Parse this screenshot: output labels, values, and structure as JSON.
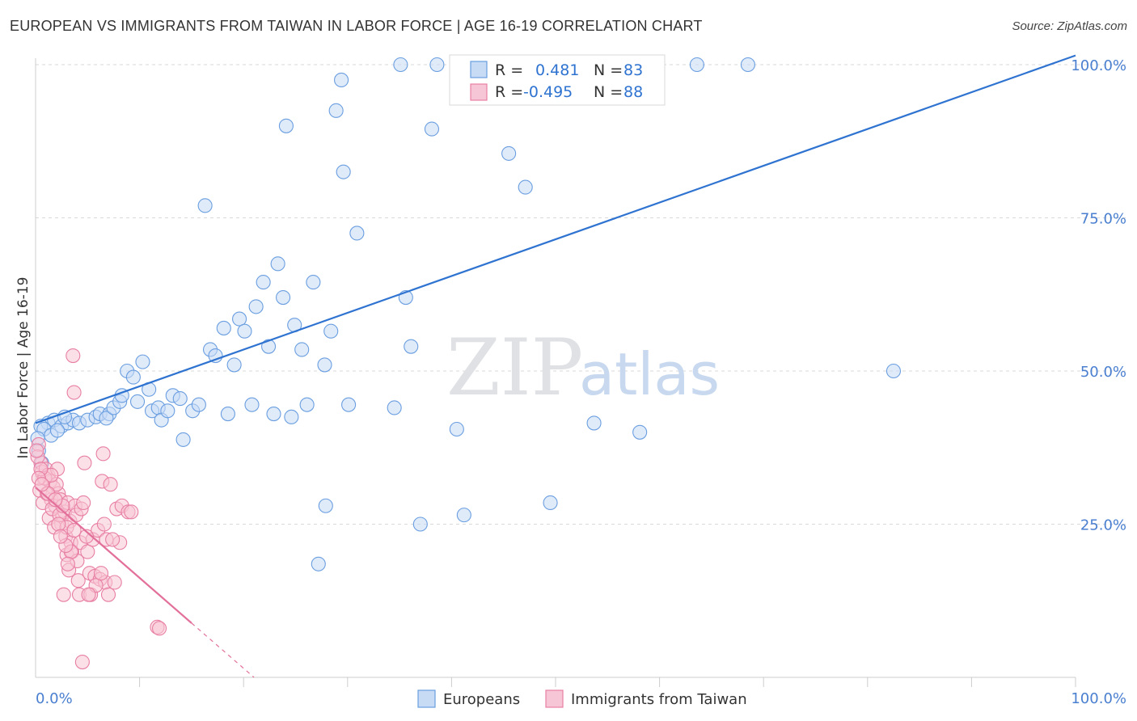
{
  "header": {
    "title": "EUROPEAN VS IMMIGRANTS FROM TAIWAN IN LABOR FORCE | AGE 16-19 CORRELATION CHART",
    "source": "Source: ZipAtlas.com"
  },
  "colors": {
    "blue": "#6a9ee0",
    "blue_fill": "#c7dbf5",
    "blue_line": "#2f73d1",
    "pink": "#e87fa3",
    "pink_fill": "#f7c6d6",
    "pink_line": "#e2709a",
    "axis_text": "#4a7fd0",
    "grid": "#d9d9d9"
  },
  "watermark": {
    "zip": "ZIP",
    "atlas": "atlas"
  },
  "legend": {
    "rows": [
      {
        "r_label": "R =",
        "r_value": " 0.481",
        "n_label": "N =",
        "n_value": "83",
        "series": "blue"
      },
      {
        "r_label": "R =",
        "r_value": "-0.495",
        "n_label": "N =",
        "n_value": "88",
        "series": "pink"
      }
    ]
  },
  "bottom_legend": {
    "europeans": "Europeans",
    "taiwan": "Immigrants from Taiwan"
  },
  "chart_data": {
    "type": "scatter",
    "title": "EUROPEAN VS IMMIGRANTS FROM TAIWAN IN LABOR FORCE | AGE 16-19 CORRELATION CHART",
    "xlabel": "",
    "ylabel": "In Labor Force | Age 16-19",
    "xlim": [
      0,
      100
    ],
    "ylim": [
      0,
      103
    ],
    "x_tick_labels": [
      "0.0%",
      "100.0%"
    ],
    "y_ticks": [
      25,
      50,
      75,
      100
    ],
    "y_tick_labels": [
      "25.0%",
      "50.0%",
      "75.0%",
      "100.0%"
    ],
    "series": [
      {
        "name": "Europeans",
        "color": "blue",
        "trend": {
          "x0": 0,
          "y0": 41.5,
          "x1": 100,
          "y1": 101.5,
          "solid_to": 100
        },
        "points": [
          [
            1.2,
            41.5
          ],
          [
            1.8,
            42
          ],
          [
            2.5,
            41
          ],
          [
            3.1,
            41.5
          ],
          [
            3.6,
            42
          ],
          [
            4.2,
            41.5
          ],
          [
            5,
            42
          ],
          [
            5.8,
            42.5
          ],
          [
            6.2,
            43
          ],
          [
            7.1,
            43
          ],
          [
            6.8,
            42.3
          ],
          [
            7.5,
            44
          ],
          [
            8.1,
            45
          ],
          [
            8.3,
            46
          ],
          [
            8.8,
            50
          ],
          [
            9.4,
            49
          ],
          [
            9.8,
            45
          ],
          [
            10.3,
            51.5
          ],
          [
            10.9,
            47
          ],
          [
            11.2,
            43.5
          ],
          [
            11.8,
            44
          ],
          [
            12.1,
            42
          ],
          [
            12.7,
            43.5
          ],
          [
            13.2,
            46
          ],
          [
            13.9,
            45.5
          ],
          [
            14.2,
            38.8
          ],
          [
            15.1,
            43.5
          ],
          [
            15.7,
            44.5
          ],
          [
            16.3,
            77
          ],
          [
            16.8,
            53.5
          ],
          [
            17.3,
            52.5
          ],
          [
            18.1,
            57
          ],
          [
            18.5,
            43
          ],
          [
            19.1,
            51
          ],
          [
            19.6,
            58.5
          ],
          [
            20.1,
            56.5
          ],
          [
            20.8,
            44.5
          ],
          [
            21.2,
            60.5
          ],
          [
            21.9,
            64.5
          ],
          [
            22.4,
            54
          ],
          [
            22.9,
            43
          ],
          [
            23.3,
            67.5
          ],
          [
            23.8,
            62
          ],
          [
            24.1,
            90
          ],
          [
            24.6,
            42.5
          ],
          [
            24.9,
            57.5
          ],
          [
            25.6,
            53.5
          ],
          [
            26.1,
            44.5
          ],
          [
            26.7,
            64.5
          ],
          [
            27.8,
            51
          ],
          [
            27.9,
            28
          ],
          [
            27.2,
            18.5
          ],
          [
            28.4,
            56.5
          ],
          [
            28.9,
            92.5
          ],
          [
            29.4,
            97.5
          ],
          [
            29.6,
            82.5
          ],
          [
            30.1,
            44.5
          ],
          [
            30.9,
            72.5
          ],
          [
            34.5,
            44
          ],
          [
            35.1,
            100
          ],
          [
            35.6,
            62
          ],
          [
            36.1,
            54
          ],
          [
            37,
            25
          ],
          [
            38.1,
            89.5
          ],
          [
            38.6,
            100
          ],
          [
            40.5,
            40.5
          ],
          [
            41.2,
            26.5
          ],
          [
            45.5,
            85.5
          ],
          [
            47.1,
            80
          ],
          [
            49.5,
            28.5
          ],
          [
            53.7,
            41.5
          ],
          [
            58.1,
            40
          ],
          [
            63.6,
            100
          ],
          [
            68.5,
            100
          ],
          [
            82.5,
            50
          ],
          [
            0.5,
            41
          ],
          [
            0.8,
            40.5
          ],
          [
            0.3,
            37
          ],
          [
            0.6,
            35
          ],
          [
            1.5,
            39.5
          ],
          [
            2.1,
            40.3
          ],
          [
            0.2,
            39
          ],
          [
            2.8,
            42.5
          ]
        ]
      },
      {
        "name": "Immigrants from Taiwan",
        "color": "pink",
        "trend": {
          "x0": 0,
          "y0": 31,
          "x1": 21,
          "y1": 0,
          "solid_to": 15
        },
        "points": [
          [
            0.3,
            38
          ],
          [
            0.5,
            35
          ],
          [
            0.6,
            33.5
          ],
          [
            0.8,
            32.5
          ],
          [
            1,
            34
          ],
          [
            1.2,
            33
          ],
          [
            1.4,
            32
          ],
          [
            1.5,
            29
          ],
          [
            1.7,
            31
          ],
          [
            1.9,
            28
          ],
          [
            2.1,
            34
          ],
          [
            2.2,
            30
          ],
          [
            2.4,
            29
          ],
          [
            2.5,
            25
          ],
          [
            2.6,
            26.5
          ],
          [
            2.7,
            13.5
          ],
          [
            2.8,
            27
          ],
          [
            2.9,
            23
          ],
          [
            3,
            20
          ],
          [
            3.1,
            28.5
          ],
          [
            3.2,
            17.5
          ],
          [
            3.3,
            25.5
          ],
          [
            3.4,
            22
          ],
          [
            3.5,
            20.5
          ],
          [
            3.6,
            52.5
          ],
          [
            3.7,
            46.5
          ],
          [
            3.8,
            28
          ],
          [
            3.9,
            26.5
          ],
          [
            4,
            19
          ],
          [
            4.1,
            15.8
          ],
          [
            4.2,
            13.5
          ],
          [
            4.3,
            22
          ],
          [
            4.4,
            27.5
          ],
          [
            4.5,
            2.5
          ],
          [
            4.6,
            28.5
          ],
          [
            4.7,
            35
          ],
          [
            5,
            20.5
          ],
          [
            5.2,
            17
          ],
          [
            5.3,
            13.5
          ],
          [
            5.5,
            22.5
          ],
          [
            5.7,
            16.5
          ],
          [
            6,
            24
          ],
          [
            6.2,
            16
          ],
          [
            6.4,
            32
          ],
          [
            6.5,
            36.5
          ],
          [
            6.6,
            25
          ],
          [
            6.7,
            15.5
          ],
          [
            6.8,
            22.5
          ],
          [
            7,
            13.5
          ],
          [
            7.2,
            31.5
          ],
          [
            7.6,
            15.5
          ],
          [
            7.8,
            27.5
          ],
          [
            8.1,
            22
          ],
          [
            8.3,
            28
          ],
          [
            8.9,
            27
          ],
          [
            9.2,
            27
          ],
          [
            11.7,
            8.2
          ],
          [
            0.4,
            30.5
          ],
          [
            0.7,
            28.5
          ],
          [
            1.1,
            30
          ],
          [
            1.3,
            26
          ],
          [
            1.6,
            27.5
          ],
          [
            1.8,
            24.5
          ],
          [
            2,
            31.5
          ],
          [
            2.3,
            26.5
          ],
          [
            0.2,
            36
          ],
          [
            0.9,
            32.5
          ],
          [
            1.5,
            33
          ],
          [
            2.6,
            28
          ],
          [
            3,
            24.5
          ],
          [
            3.4,
            20.5
          ],
          [
            0.5,
            34
          ],
          [
            1.2,
            30
          ],
          [
            0.3,
            32.5
          ],
          [
            2.2,
            25
          ],
          [
            2.9,
            21.5
          ],
          [
            3.7,
            24
          ],
          [
            5.8,
            15
          ],
          [
            6.3,
            17
          ],
          [
            0.1,
            37
          ],
          [
            0.6,
            31.5
          ],
          [
            1.9,
            29
          ],
          [
            2.4,
            23
          ],
          [
            3.1,
            18.5
          ],
          [
            4.9,
            23
          ],
          [
            5.1,
            13.5
          ],
          [
            7.4,
            22.5
          ],
          [
            11.9,
            8
          ]
        ]
      }
    ]
  }
}
